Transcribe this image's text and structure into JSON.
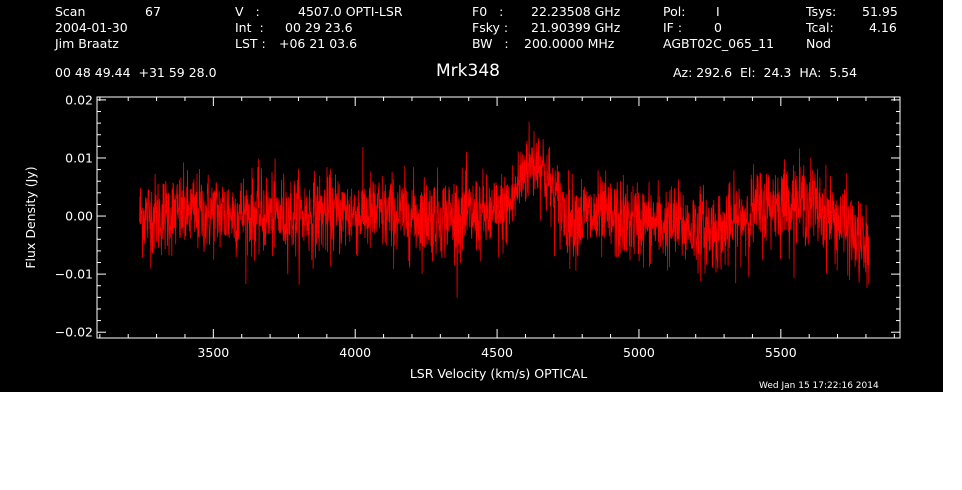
{
  "header": {
    "col1": [
      "Scan",
      "2004-01-30",
      "Jim Braatz"
    ],
    "scan_number": "67",
    "col2": [
      "V   :",
      "Int  :",
      "LST :"
    ],
    "col2_values": [
      "4507.0 OPTI-LSR",
      "00 29 23.6",
      "+06 21 03.6"
    ],
    "col3": [
      "F0   :",
      "Fsky :",
      "BW   :"
    ],
    "col3_values": [
      "22.23508 GHz",
      "21.90399 GHz",
      "200.0000 MHz"
    ],
    "col4": [
      "Pol:",
      "IF :",
      "AGBT02C_065_11"
    ],
    "col4_values": [
      "I",
      "0",
      ""
    ],
    "col5": [
      "Tsys:",
      "Tcal:",
      "Nod"
    ],
    "col5_values": [
      "51.95",
      "4.16",
      ""
    ],
    "coords": "00 48 49.44  +31 59 28.0",
    "source": "Mrk348",
    "pointing": "Az: 292.6  El:  24.3  HA:  5.54",
    "timestamp": "Wed Jan 15 17:22:16 2014"
  },
  "colors": {
    "background": "#000000",
    "trace": "#ff0000",
    "axes": "#ffffff",
    "text": "#ffffff"
  },
  "chart_data": {
    "type": "line",
    "title": "Mrk348",
    "xlabel": "LSR Velocity (km/s) OPTICAL",
    "ylabel": "Flux Density (Jy)",
    "xlim": [
      3090,
      5920
    ],
    "ylim": [
      -0.021,
      0.0205
    ],
    "xticks": [
      3500,
      4000,
      4500,
      5000,
      5500
    ],
    "xtick_labels": [
      "3500",
      "4000",
      "4500",
      "5000",
      "5500"
    ],
    "yticks": [
      -0.02,
      -0.01,
      0.0,
      0.01,
      0.02
    ],
    "ytick_labels": [
      "−0.02",
      "−0.01",
      "0.00",
      "0.01",
      "0.02"
    ],
    "grid": false,
    "legend": "none",
    "x_start": 3240,
    "x_end": 5810,
    "series": [
      {
        "baseline_envelope": {
          "x": [
            3240,
            3400,
            3600,
            3800,
            4000,
            4200,
            4400,
            4500,
            4550,
            4600,
            4650,
            4700,
            4750,
            4800,
            5000,
            5200,
            5300,
            5400,
            5500,
            5600,
            5700,
            5750,
            5810
          ],
          "y": [
            0.0,
            0.0005,
            0.0005,
            0.0,
            0.0005,
            0.0,
            0.0,
            0.0,
            0.002,
            0.0085,
            0.0095,
            0.0035,
            -0.0005,
            0.0,
            -0.001,
            -0.002,
            -0.0025,
            0.001,
            0.0025,
            0.0025,
            -0.001,
            -0.003,
            -0.0065
          ]
        },
        "noise_sigma": 0.0035
      }
    ]
  }
}
